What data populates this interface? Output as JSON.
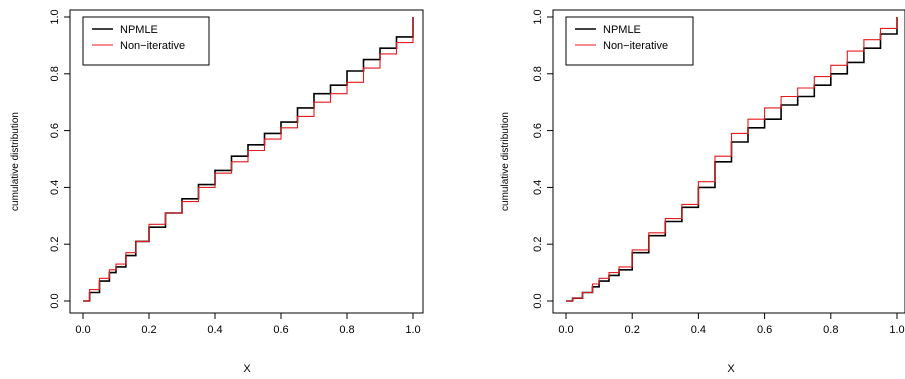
{
  "chart_data": [
    {
      "type": "line",
      "xlabel": "X",
      "ylabel": "cumulative distribution",
      "xlim": [
        0,
        1
      ],
      "ylim": [
        0,
        1
      ],
      "xticks": [
        "0.0",
        "0.2",
        "0.4",
        "0.6",
        "0.8",
        "1.0"
      ],
      "yticks": [
        "0.0",
        "0.2",
        "0.4",
        "0.6",
        "0.8",
        "1.0"
      ],
      "grid": false,
      "legend": "top-left",
      "series": [
        {
          "name": "NPMLE",
          "color": "#000000",
          "x": [
            0.0,
            0.02,
            0.05,
            0.08,
            0.1,
            0.13,
            0.16,
            0.2,
            0.25,
            0.3,
            0.35,
            0.4,
            0.45,
            0.5,
            0.55,
            0.6,
            0.65,
            0.7,
            0.75,
            0.8,
            0.85,
            0.9,
            0.95,
            1.0
          ],
          "y": [
            0.0,
            0.03,
            0.07,
            0.1,
            0.12,
            0.16,
            0.21,
            0.26,
            0.31,
            0.36,
            0.41,
            0.46,
            0.51,
            0.55,
            0.59,
            0.63,
            0.68,
            0.73,
            0.76,
            0.81,
            0.85,
            0.89,
            0.93,
            1.0
          ]
        },
        {
          "name": "Non−iterative",
          "color": "#e41a1c",
          "x": [
            0.0,
            0.02,
            0.05,
            0.08,
            0.1,
            0.13,
            0.16,
            0.2,
            0.25,
            0.3,
            0.35,
            0.4,
            0.45,
            0.5,
            0.55,
            0.6,
            0.65,
            0.7,
            0.75,
            0.8,
            0.85,
            0.9,
            0.95,
            1.0
          ],
          "y": [
            0.0,
            0.04,
            0.08,
            0.11,
            0.13,
            0.17,
            0.21,
            0.27,
            0.31,
            0.35,
            0.4,
            0.45,
            0.49,
            0.53,
            0.57,
            0.61,
            0.65,
            0.7,
            0.73,
            0.77,
            0.82,
            0.87,
            0.91,
            1.0
          ]
        }
      ]
    },
    {
      "type": "line",
      "xlabel": "X",
      "ylabel": "cumulative distribution",
      "xlim": [
        0,
        1
      ],
      "ylim": [
        0,
        1
      ],
      "xticks": [
        "0.0",
        "0.2",
        "0.4",
        "0.6",
        "0.8",
        "1.0"
      ],
      "yticks": [
        "0.0",
        "0.2",
        "0.4",
        "0.6",
        "0.8",
        "1.0"
      ],
      "grid": false,
      "legend": "top-left",
      "series": [
        {
          "name": "NPMLE",
          "color": "#000000",
          "x": [
            0.0,
            0.02,
            0.05,
            0.08,
            0.1,
            0.13,
            0.16,
            0.2,
            0.25,
            0.3,
            0.35,
            0.4,
            0.45,
            0.5,
            0.55,
            0.6,
            0.65,
            0.7,
            0.75,
            0.8,
            0.85,
            0.9,
            0.95,
            1.0
          ],
          "y": [
            0.0,
            0.01,
            0.03,
            0.05,
            0.07,
            0.09,
            0.11,
            0.17,
            0.23,
            0.28,
            0.33,
            0.4,
            0.49,
            0.56,
            0.61,
            0.64,
            0.69,
            0.72,
            0.76,
            0.8,
            0.84,
            0.89,
            0.94,
            1.0
          ]
        },
        {
          "name": "Non−iterative",
          "color": "#e41a1c",
          "x": [
            0.0,
            0.02,
            0.05,
            0.08,
            0.1,
            0.13,
            0.16,
            0.2,
            0.25,
            0.3,
            0.35,
            0.4,
            0.45,
            0.5,
            0.55,
            0.6,
            0.65,
            0.7,
            0.75,
            0.8,
            0.85,
            0.9,
            0.95,
            1.0
          ],
          "y": [
            0.0,
            0.01,
            0.03,
            0.06,
            0.08,
            0.1,
            0.12,
            0.18,
            0.24,
            0.29,
            0.34,
            0.42,
            0.51,
            0.59,
            0.64,
            0.68,
            0.72,
            0.75,
            0.79,
            0.83,
            0.88,
            0.92,
            0.96,
            1.0
          ]
        }
      ]
    }
  ]
}
